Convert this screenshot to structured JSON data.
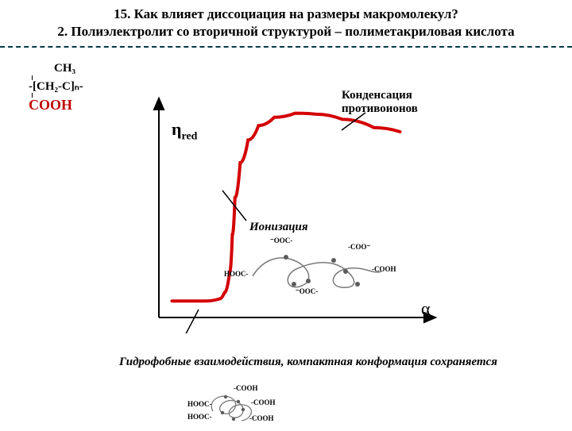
{
  "title": {
    "line1": "15. Как  влияет диссоциация на размеры макромолекул?",
    "line2": "2. Полиэлектролит со вторичной структурой – полиметакриловая кислота"
  },
  "formula": {
    "top": "CH₃",
    "mid": "-[CH₂-C]ₙ-",
    "bottom": "COOH"
  },
  "chart": {
    "xlim": [
      0,
      1
    ],
    "ylim": [
      0,
      1
    ],
    "curve_color": "#d40000",
    "curve_width": 4,
    "axis_color": "#000000",
    "curve_points": [
      [
        0.05,
        0.08
      ],
      [
        0.18,
        0.08
      ],
      [
        0.23,
        0.09
      ],
      [
        0.25,
        0.12
      ],
      [
        0.27,
        0.22
      ],
      [
        0.28,
        0.4
      ],
      [
        0.29,
        0.58
      ],
      [
        0.31,
        0.75
      ],
      [
        0.34,
        0.86
      ],
      [
        0.38,
        0.93
      ],
      [
        0.44,
        0.97
      ],
      [
        0.52,
        0.99
      ],
      [
        0.6,
        0.985
      ],
      [
        0.7,
        0.96
      ],
      [
        0.82,
        0.92
      ],
      [
        0.92,
        0.9
      ]
    ],
    "y_label_html": "η<sub>red</sub>",
    "x_label": "α",
    "annotations": {
      "condensation": "Конденсация противоионов",
      "ionization": "Ионизация"
    },
    "pointer_color": "#000000"
  },
  "ionized_molecule": {
    "labels": [
      "⁻OOC-",
      "-COO⁻",
      "HOOC-",
      "-COOH",
      "⁻OOC-"
    ],
    "dot_color": "#5c5c5c",
    "line_color": "#7a7a7a"
  },
  "footnote": "Гидрофобные взаимодействия, компактная конформация сохраняется",
  "compact_coil": {
    "labels": [
      "-COOH",
      "HOOC-",
      "-COOH",
      "HOOC-",
      "-COOH"
    ],
    "dot_color": "#5c5c5c",
    "line_color": "#7a7a7a"
  }
}
